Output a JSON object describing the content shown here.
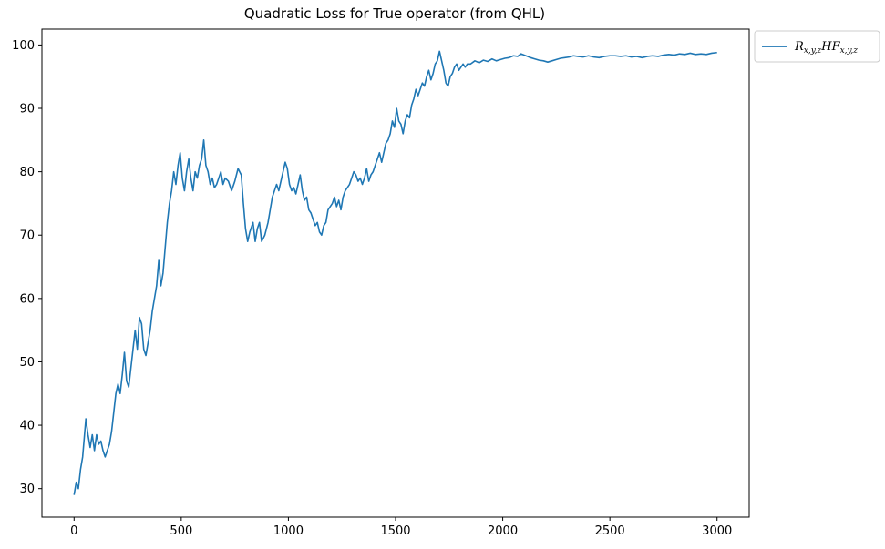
{
  "chart_data": {
    "type": "line",
    "title": "Quadratic Loss for True operator (from QHL)",
    "xlabel": "",
    "ylabel": "",
    "xlim": [
      -150,
      3150
    ],
    "ylim": [
      25.5,
      102.5
    ],
    "xticks": [
      0,
      500,
      1000,
      1500,
      2000,
      2500,
      3000
    ],
    "yticks": [
      30,
      40,
      50,
      60,
      70,
      80,
      90,
      100
    ],
    "grid": false,
    "legend_position": "outside-top-right",
    "series": [
      {
        "name": "R_{x,y,z}HF_{x,y,z}",
        "color": "#1f77b4",
        "points": [
          [
            0,
            29.0
          ],
          [
            10,
            31.0
          ],
          [
            20,
            30.0
          ],
          [
            30,
            33.0
          ],
          [
            40,
            35.0
          ],
          [
            55,
            41.0
          ],
          [
            65,
            38.5
          ],
          [
            75,
            36.5
          ],
          [
            85,
            38.5
          ],
          [
            95,
            36.0
          ],
          [
            105,
            38.5
          ],
          [
            115,
            37.0
          ],
          [
            125,
            37.5
          ],
          [
            135,
            36.0
          ],
          [
            145,
            35.0
          ],
          [
            155,
            36.0
          ],
          [
            165,
            37.0
          ],
          [
            175,
            39.0
          ],
          [
            185,
            42.0
          ],
          [
            195,
            45.0
          ],
          [
            205,
            46.5
          ],
          [
            215,
            45.0
          ],
          [
            225,
            48.0
          ],
          [
            235,
            51.5
          ],
          [
            245,
            47.0
          ],
          [
            255,
            46.0
          ],
          [
            265,
            49.0
          ],
          [
            275,
            52.0
          ],
          [
            285,
            55.0
          ],
          [
            295,
            52.0
          ],
          [
            305,
            57.0
          ],
          [
            315,
            56.0
          ],
          [
            325,
            52.0
          ],
          [
            335,
            51.0
          ],
          [
            345,
            53.0
          ],
          [
            355,
            55.0
          ],
          [
            365,
            58.0
          ],
          [
            375,
            60.0
          ],
          [
            385,
            62.0
          ],
          [
            395,
            66.0
          ],
          [
            405,
            62.0
          ],
          [
            415,
            64.0
          ],
          [
            425,
            68.0
          ],
          [
            435,
            72.0
          ],
          [
            445,
            75.0
          ],
          [
            455,
            77.0
          ],
          [
            465,
            80.0
          ],
          [
            475,
            78.0
          ],
          [
            485,
            81.0
          ],
          [
            495,
            83.0
          ],
          [
            505,
            79.0
          ],
          [
            515,
            77.0
          ],
          [
            525,
            80.0
          ],
          [
            535,
            82.0
          ],
          [
            545,
            79.0
          ],
          [
            555,
            77.0
          ],
          [
            565,
            80.0
          ],
          [
            575,
            79.0
          ],
          [
            585,
            81.0
          ],
          [
            595,
            82.0
          ],
          [
            605,
            85.0
          ],
          [
            615,
            81.0
          ],
          [
            625,
            80.0
          ],
          [
            635,
            78.0
          ],
          [
            645,
            79.0
          ],
          [
            655,
            77.5
          ],
          [
            665,
            78.0
          ],
          [
            675,
            79.0
          ],
          [
            685,
            80.0
          ],
          [
            695,
            78.0
          ],
          [
            705,
            79.0
          ],
          [
            720,
            78.5
          ],
          [
            735,
            77.0
          ],
          [
            750,
            78.5
          ],
          [
            765,
            80.5
          ],
          [
            780,
            79.5
          ],
          [
            790,
            75.0
          ],
          [
            800,
            71.0
          ],
          [
            810,
            69.0
          ],
          [
            820,
            70.5
          ],
          [
            835,
            72.0
          ],
          [
            845,
            69.0
          ],
          [
            855,
            71.0
          ],
          [
            865,
            72.0
          ],
          [
            875,
            69.0
          ],
          [
            890,
            70.0
          ],
          [
            905,
            72.0
          ],
          [
            915,
            74.0
          ],
          [
            925,
            76.0
          ],
          [
            935,
            77.0
          ],
          [
            945,
            78.0
          ],
          [
            955,
            77.0
          ],
          [
            965,
            78.5
          ],
          [
            975,
            80.0
          ],
          [
            985,
            81.5
          ],
          [
            995,
            80.5
          ],
          [
            1005,
            78.0
          ],
          [
            1015,
            77.0
          ],
          [
            1025,
            77.5
          ],
          [
            1035,
            76.5
          ],
          [
            1045,
            78.0
          ],
          [
            1055,
            79.5
          ],
          [
            1065,
            77.0
          ],
          [
            1075,
            75.5
          ],
          [
            1085,
            76.0
          ],
          [
            1095,
            74.0
          ],
          [
            1105,
            73.5
          ],
          [
            1115,
            72.5
          ],
          [
            1125,
            71.5
          ],
          [
            1135,
            72.0
          ],
          [
            1145,
            70.5
          ],
          [
            1155,
            70.0
          ],
          [
            1165,
            71.5
          ],
          [
            1175,
            72.0
          ],
          [
            1185,
            74.0
          ],
          [
            1195,
            74.5
          ],
          [
            1205,
            75.0
          ],
          [
            1215,
            76.0
          ],
          [
            1225,
            74.5
          ],
          [
            1235,
            75.5
          ],
          [
            1245,
            74.0
          ],
          [
            1255,
            76.0
          ],
          [
            1265,
            77.0
          ],
          [
            1275,
            77.5
          ],
          [
            1285,
            78.0
          ],
          [
            1295,
            79.0
          ],
          [
            1305,
            80.0
          ],
          [
            1315,
            79.5
          ],
          [
            1325,
            78.5
          ],
          [
            1335,
            79.0
          ],
          [
            1345,
            78.0
          ],
          [
            1355,
            79.0
          ],
          [
            1365,
            80.5
          ],
          [
            1375,
            78.5
          ],
          [
            1385,
            79.5
          ],
          [
            1395,
            80.0
          ],
          [
            1405,
            81.0
          ],
          [
            1415,
            82.0
          ],
          [
            1425,
            83.0
          ],
          [
            1435,
            81.5
          ],
          [
            1445,
            83.0
          ],
          [
            1455,
            84.5
          ],
          [
            1465,
            85.0
          ],
          [
            1475,
            86.0
          ],
          [
            1485,
            88.0
          ],
          [
            1495,
            87.0
          ],
          [
            1505,
            90.0
          ],
          [
            1515,
            88.0
          ],
          [
            1525,
            87.5
          ],
          [
            1535,
            86.0
          ],
          [
            1545,
            88.0
          ],
          [
            1555,
            89.0
          ],
          [
            1565,
            88.5
          ],
          [
            1575,
            90.5
          ],
          [
            1585,
            91.5
          ],
          [
            1595,
            93.0
          ],
          [
            1605,
            92.0
          ],
          [
            1615,
            93.0
          ],
          [
            1625,
            94.0
          ],
          [
            1635,
            93.5
          ],
          [
            1645,
            95.0
          ],
          [
            1655,
            96.0
          ],
          [
            1665,
            94.5
          ],
          [
            1675,
            95.5
          ],
          [
            1685,
            97.0
          ],
          [
            1695,
            97.5
          ],
          [
            1705,
            99.0
          ],
          [
            1715,
            97.5
          ],
          [
            1725,
            96.0
          ],
          [
            1735,
            94.0
          ],
          [
            1745,
            93.5
          ],
          [
            1755,
            95.0
          ],
          [
            1765,
            95.5
          ],
          [
            1775,
            96.5
          ],
          [
            1785,
            97.0
          ],
          [
            1795,
            96.0
          ],
          [
            1805,
            96.5
          ],
          [
            1815,
            97.0
          ],
          [
            1825,
            96.5
          ],
          [
            1835,
            97.0
          ],
          [
            1850,
            97.0
          ],
          [
            1870,
            97.5
          ],
          [
            1890,
            97.2
          ],
          [
            1910,
            97.6
          ],
          [
            1930,
            97.4
          ],
          [
            1950,
            97.8
          ],
          [
            1970,
            97.5
          ],
          [
            1990,
            97.7
          ],
          [
            2010,
            97.9
          ],
          [
            2030,
            98.0
          ],
          [
            2050,
            98.3
          ],
          [
            2070,
            98.2
          ],
          [
            2085,
            98.6
          ],
          [
            2100,
            98.4
          ],
          [
            2115,
            98.2
          ],
          [
            2130,
            98.0
          ],
          [
            2150,
            97.8
          ],
          [
            2170,
            97.6
          ],
          [
            2190,
            97.5
          ],
          [
            2210,
            97.3
          ],
          [
            2230,
            97.5
          ],
          [
            2250,
            97.7
          ],
          [
            2270,
            97.9
          ],
          [
            2290,
            98.0
          ],
          [
            2310,
            98.1
          ],
          [
            2330,
            98.3
          ],
          [
            2350,
            98.2
          ],
          [
            2375,
            98.1
          ],
          [
            2400,
            98.3
          ],
          [
            2425,
            98.1
          ],
          [
            2450,
            98.0
          ],
          [
            2475,
            98.2
          ],
          [
            2500,
            98.3
          ],
          [
            2525,
            98.3
          ],
          [
            2550,
            98.2
          ],
          [
            2575,
            98.3
          ],
          [
            2600,
            98.1
          ],
          [
            2625,
            98.2
          ],
          [
            2650,
            98.0
          ],
          [
            2675,
            98.2
          ],
          [
            2700,
            98.3
          ],
          [
            2725,
            98.2
          ],
          [
            2750,
            98.4
          ],
          [
            2775,
            98.5
          ],
          [
            2800,
            98.4
          ],
          [
            2825,
            98.6
          ],
          [
            2850,
            98.5
          ],
          [
            2875,
            98.7
          ],
          [
            2900,
            98.5
          ],
          [
            2925,
            98.6
          ],
          [
            2950,
            98.5
          ],
          [
            2975,
            98.7
          ],
          [
            3000,
            98.8
          ]
        ]
      }
    ]
  }
}
